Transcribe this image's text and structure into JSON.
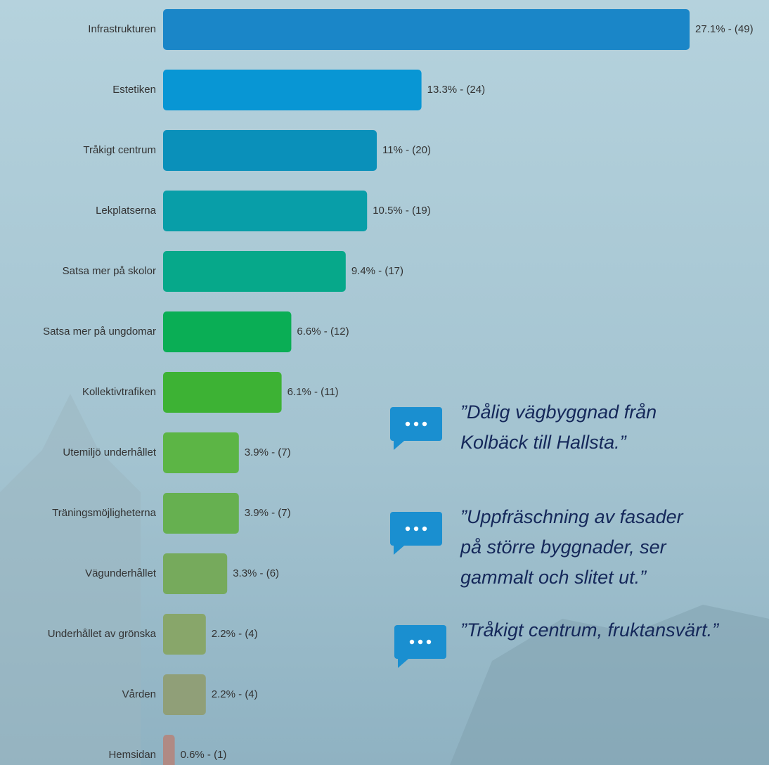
{
  "chart_data": {
    "type": "bar",
    "orientation": "horizontal",
    "categories": [
      "Infrastrukturen",
      "Estetiken",
      "Tråkigt centrum",
      "Lekplatserna",
      "Satsa mer på skolor",
      "Satsa mer på ungdomar",
      "Kollektivtrafiken",
      "Utemiljö underhållet",
      "Träningsmöjligheterna",
      "Vägunderhållet",
      "Underhållet av grönska",
      "Vården",
      "Hemsidan"
    ],
    "values": [
      27.1,
      13.3,
      11,
      10.5,
      9.4,
      6.6,
      6.1,
      3.9,
      3.9,
      3.3,
      2.2,
      2.2,
      0.6
    ],
    "value_labels": [
      "27.1% - (49)",
      "13.3% - (24)",
      "11% - (20)",
      "10.5% - (19)",
      "9.4% - (17)",
      "6.6% - (12)",
      "6.1% - (11)",
      "3.9% - (7)",
      "3.9% - (7)",
      "3.3% - (6)",
      "2.2% - (4)",
      "2.2% - (4)",
      "0.6% - (1)"
    ],
    "colors": [
      "#1a86c8",
      "#0896d4",
      "#0a90ba",
      "#089ea8",
      "#06a88a",
      "#0aae55",
      "#3db234",
      "#5cb545",
      "#66b050",
      "#76aa5c",
      "#88a66a",
      "#909f78",
      "#b08a84"
    ]
  },
  "quotes": [
    {
      "lines": [
        "”Dålig vägbyggnad från",
        "Kolbäck till Hallsta.”"
      ]
    },
    {
      "lines": [
        "”Uppfräschning av fasader",
        "på större byggnader, ser",
        "gammalt och slitet ut.”"
      ]
    },
    {
      "lines": [
        "”Tråkigt centrum, fruktansvärt.”"
      ]
    }
  ]
}
